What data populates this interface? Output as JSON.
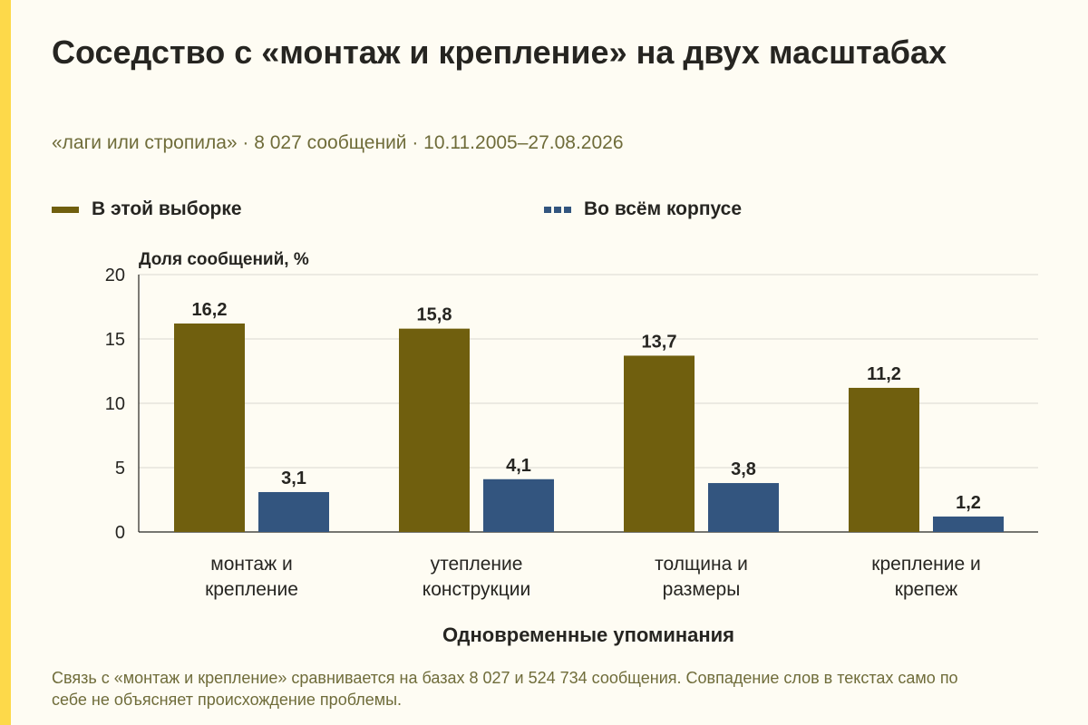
{
  "title": "Соседство с «монтаж и крепление» на двух масштабах",
  "subtitle": "«лаги или стропила» · 8 027 сообщений · 10.11.2005–27.08.2026",
  "caption": "Связь с «монтаж и крепление» сравнивается на базах 8 027 и 524 734 сообщения. Совпадение слов в текстах само по себе не объясняет происхождение проблемы.",
  "colors": {
    "accent": "#fdd94a",
    "background": "#fefcf3",
    "series_1": "#705f0e",
    "series_2": "#33557f"
  },
  "chart_data": {
    "type": "bar",
    "categories": [
      [
        "монтаж и",
        "крепление"
      ],
      [
        "утепление",
        "конструкции"
      ],
      [
        "толщина и",
        "размеры"
      ],
      [
        "крепление и",
        "крепеж"
      ]
    ],
    "series": [
      {
        "name": "В этой выборке",
        "values": [
          16.2,
          15.8,
          13.7,
          11.2
        ],
        "labels": [
          "16,2",
          "15,8",
          "13,7",
          "11,2"
        ]
      },
      {
        "name": "Во всём корпусе",
        "values": [
          3.1,
          4.1,
          3.8,
          1.2
        ],
        "labels": [
          "3,1",
          "4,1",
          "3,8",
          "1,2"
        ]
      }
    ],
    "ylabel": "Доля сообщений, %",
    "xlabel": "Одновременные упоминания",
    "ylim": [
      0,
      20
    ],
    "yticks": [
      "0",
      "5",
      "10",
      "15",
      "20"
    ],
    "grid": true,
    "legend": "top"
  }
}
